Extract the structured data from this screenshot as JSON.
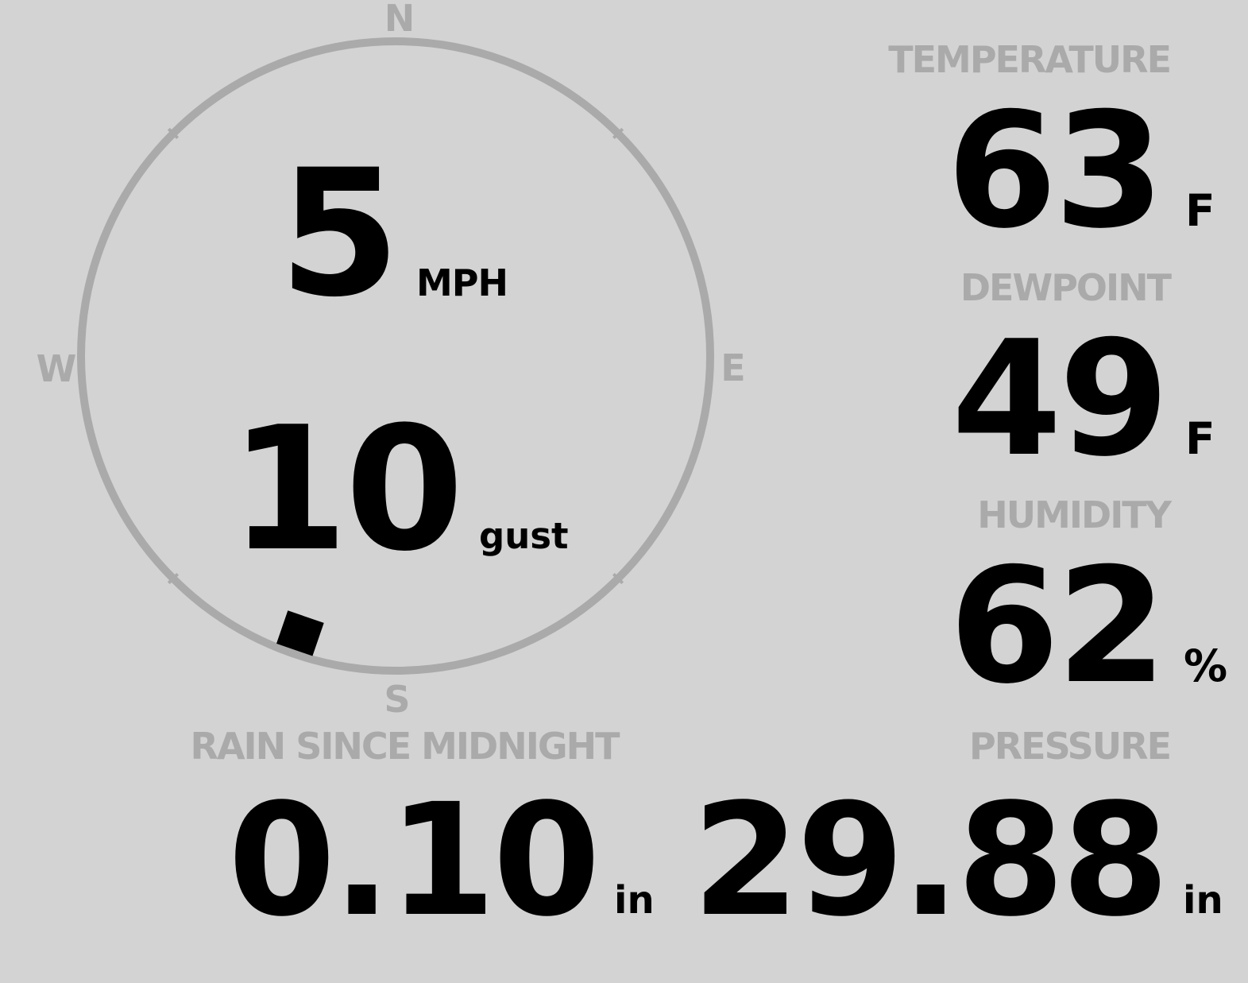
{
  "colors": {
    "background": "#d3d3d3",
    "label": "#aaaaaa",
    "value": "#000000",
    "compass_ring": "#aaaaaa"
  },
  "wind": {
    "compass": {
      "north": "N",
      "south": "S",
      "east": "E",
      "west": "W"
    },
    "direction_degrees": 199,
    "speed": "5",
    "speed_unit": "MPH",
    "gust": "10",
    "gust_label": "gust"
  },
  "temperature": {
    "label": "TEMPERATURE",
    "value": "63",
    "unit": "F"
  },
  "dewpoint": {
    "label": "DEWPOINT",
    "value": "49",
    "unit": "F"
  },
  "humidity": {
    "label": "HUMIDITY",
    "value": "62",
    "unit": "%"
  },
  "rain": {
    "label": "RAIN SINCE MIDNIGHT",
    "value": "0.10",
    "unit": "in"
  },
  "pressure": {
    "label": "PRESSURE",
    "value": "29.88",
    "unit": "in"
  }
}
